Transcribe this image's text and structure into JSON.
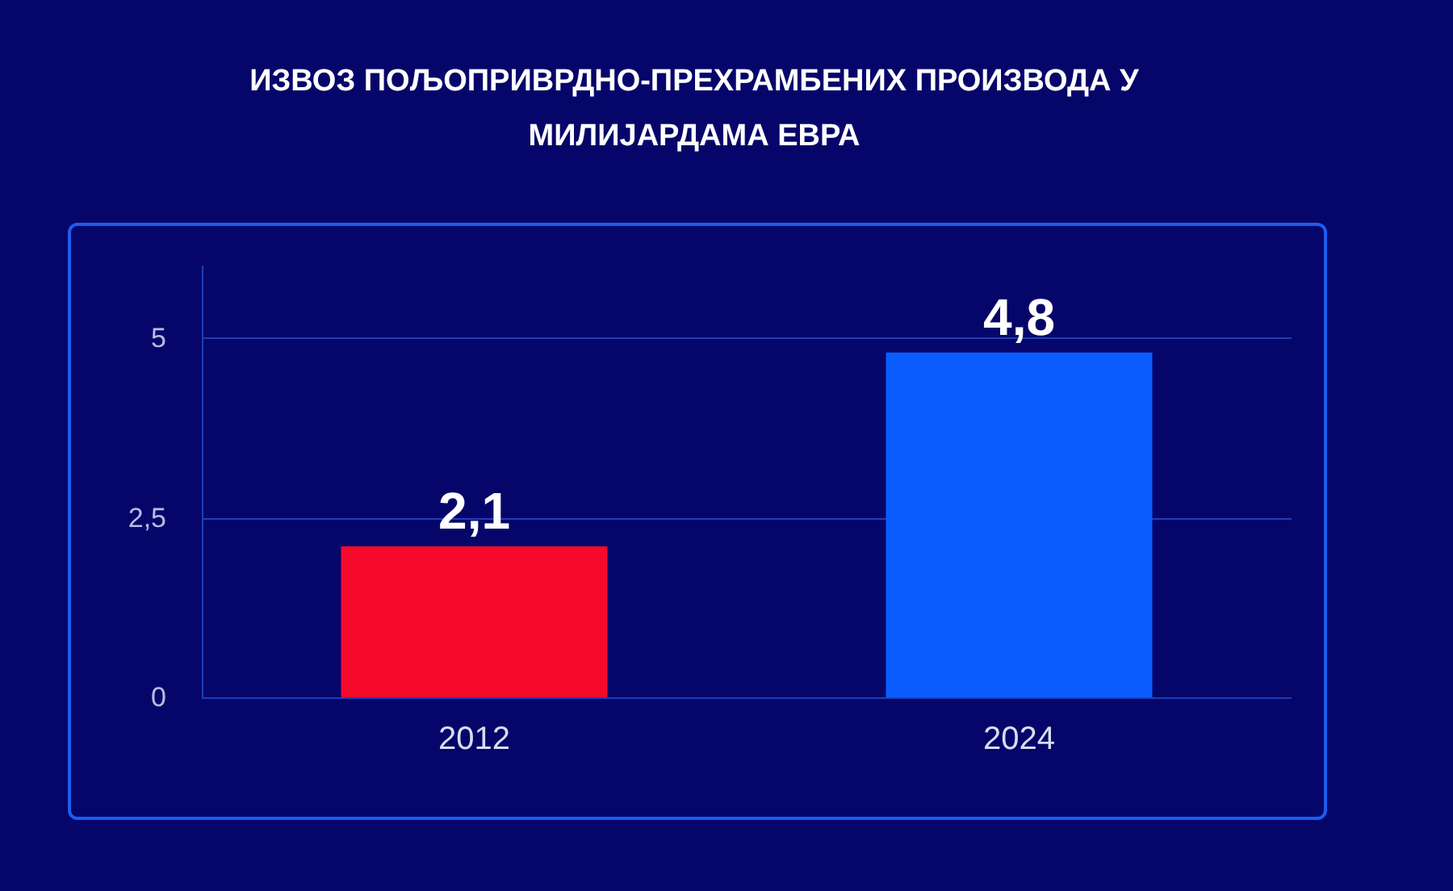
{
  "chart_data": {
    "type": "bar",
    "title": "ИЗВОЗ ПОЉОПРИВРДНО-ПРЕХРАМБЕНИХ ПРОИЗВОДА У МИЛИЈАРДАМА ЕВРА",
    "categories": [
      "2012",
      "2024"
    ],
    "values": [
      2.1,
      4.8
    ],
    "colors": [
      "#f50a2c",
      "#0a5cff"
    ],
    "value_labels": [
      "2,1",
      "4,8"
    ],
    "ylim": [
      0,
      6
    ],
    "yticks": [
      0,
      {
        "value": 2.5,
        "label": "2,5"
      },
      5
    ],
    "grid": "y"
  }
}
